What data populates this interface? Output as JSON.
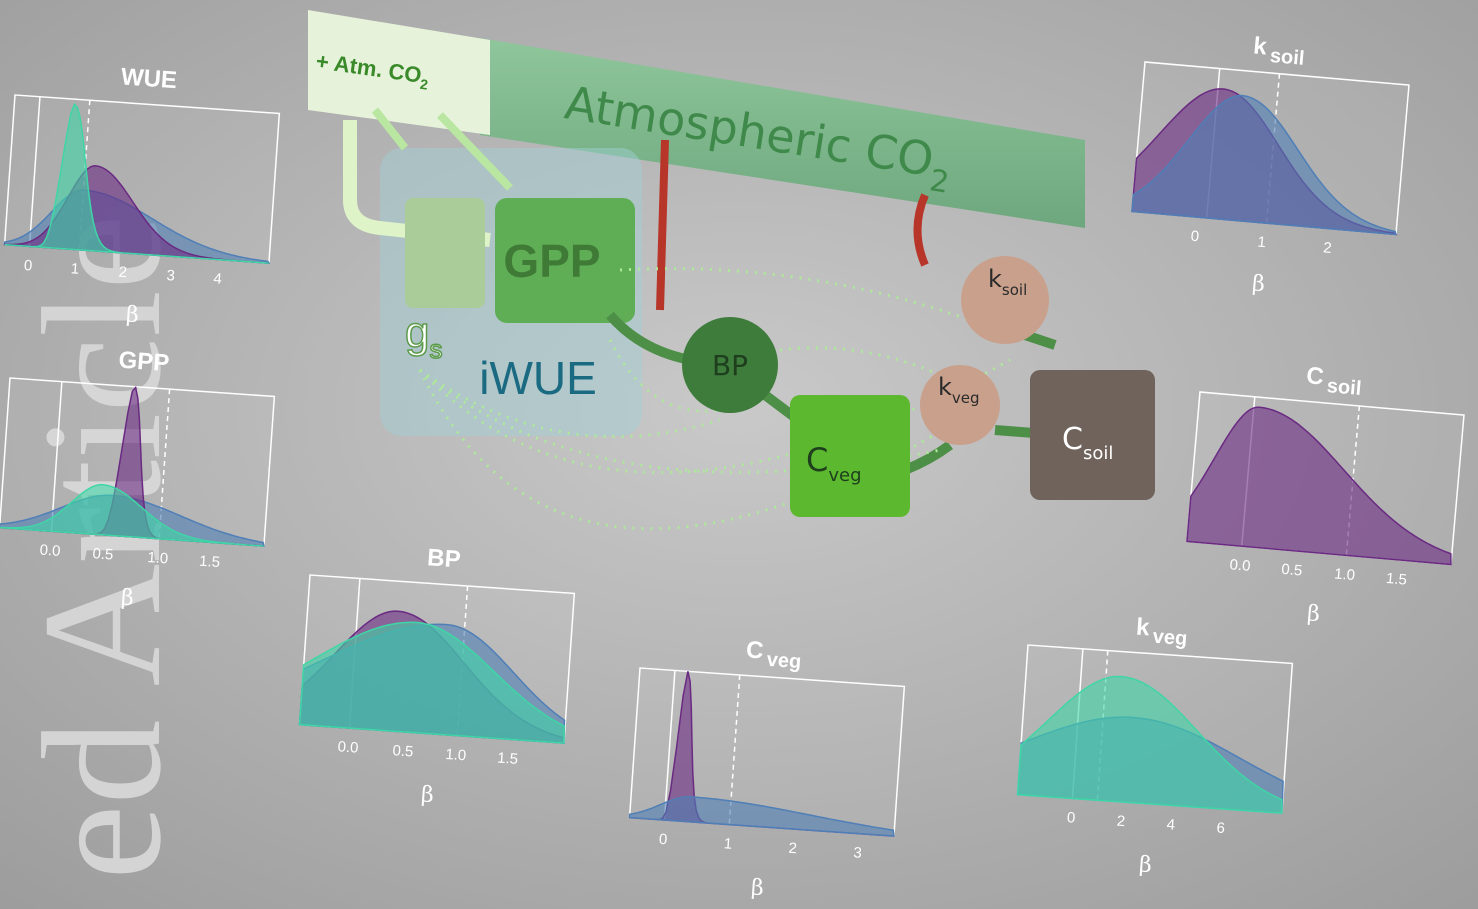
{
  "watermark": "ed Article",
  "diagram": {
    "atm_label": {
      "main": "+ Atm. CO",
      "sub": "2"
    },
    "atmospheric": {
      "main": "Atmospheric CO",
      "sub": "2"
    },
    "gpp": "GPP",
    "gs": {
      "main": "g",
      "sub": "s"
    },
    "iwue": "iWUE",
    "bp": "BP",
    "cveg": {
      "main": "C",
      "sub": "veg"
    },
    "kveg": {
      "main": "k",
      "sub": "veg"
    },
    "ksoil": {
      "main": "k",
      "sub": "soil"
    },
    "csoil": {
      "main": "C",
      "sub": "soil"
    }
  },
  "panels": [
    {
      "title": {
        "main": "WUE"
      },
      "ticks": [
        "0",
        "1",
        "2",
        "3",
        "4"
      ],
      "axis_label": "β"
    },
    {
      "title": {
        "main": "GPP"
      },
      "ticks": [
        "0.0",
        "0.5",
        "1.0",
        "1.5"
      ],
      "axis_label": "β"
    },
    {
      "title": {
        "main": "BP"
      },
      "ticks": [
        "0.0",
        "0.5",
        "1.0",
        "1.5"
      ],
      "axis_label": "β"
    },
    {
      "title": {
        "main": "C",
        "sub": "veg"
      },
      "ticks": [
        "0",
        "1",
        "2",
        "3"
      ],
      "axis_label": "β"
    },
    {
      "title": {
        "main": "k",
        "sub": "soil"
      },
      "ticks": [
        "0",
        "1",
        "2"
      ],
      "axis_label": "β"
    },
    {
      "title": {
        "main": "C",
        "sub": "soil"
      },
      "ticks": [
        "0.0",
        "0.5",
        "1.0",
        "1.5"
      ],
      "axis_label": "β"
    },
    {
      "title": {
        "main": "k",
        "sub": "veg"
      },
      "ticks": [
        "0",
        "2",
        "4",
        "6"
      ],
      "axis_label": "β"
    }
  ]
}
